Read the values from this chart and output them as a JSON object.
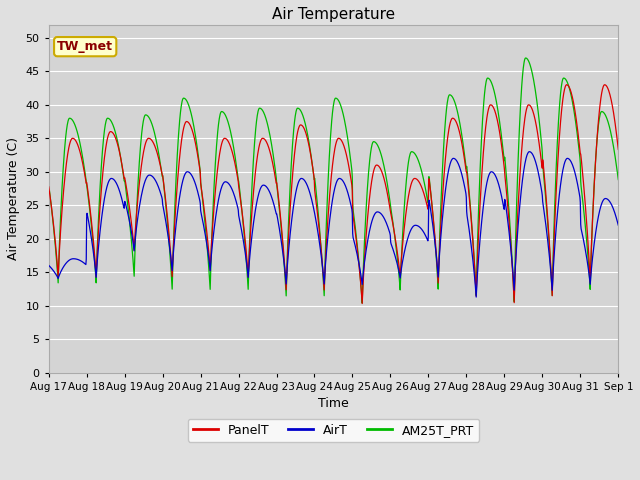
{
  "title": "Air Temperature",
  "xlabel": "Time",
  "ylabel": "Air Temperature (C)",
  "ylim": [
    0,
    52
  ],
  "yticks": [
    0,
    5,
    10,
    15,
    20,
    25,
    30,
    35,
    40,
    45,
    50
  ],
  "x_labels": [
    "Aug 17",
    "Aug 18",
    "Aug 19",
    "Aug 20",
    "Aug 21",
    "Aug 22",
    "Aug 23",
    "Aug 24",
    "Aug 25",
    "Aug 26",
    "Aug 27",
    "Aug 28",
    "Aug 29",
    "Aug 30",
    "Aug 31",
    "Sep 1"
  ],
  "annotation_text": "TW_met",
  "annotation_color": "#8B0000",
  "annotation_bg": "#FFFFCC",
  "annotation_edge": "#CCAA00",
  "panel_color": "#DD0000",
  "airt_color": "#0000CC",
  "am25t_color": "#00BB00",
  "fig_bg_color": "#E0E0E0",
  "plot_bg_color": "#D4D4D4",
  "grid_color": "#FFFFFF",
  "n_days": 15,
  "points_per_day": 96,
  "daily_maxes_panel": [
    35,
    36,
    35,
    37.5,
    35,
    35,
    37,
    35,
    31,
    29,
    38,
    40,
    40,
    43,
    43
  ],
  "daily_mins_panel": [
    14,
    14,
    18,
    14,
    15,
    14,
    12,
    12,
    10,
    14,
    13,
    11,
    10,
    11,
    13
  ],
  "daily_maxes_airt": [
    17,
    29,
    29.5,
    30,
    28.5,
    28,
    29,
    29,
    24,
    22,
    32,
    30,
    33,
    32,
    26
  ],
  "daily_mins_airt": [
    14,
    14,
    18,
    15,
    15,
    14,
    13,
    13,
    13,
    14,
    14,
    11,
    12,
    12,
    13
  ],
  "daily_maxes_am25t": [
    38,
    38,
    38.5,
    41,
    39,
    39.5,
    39.5,
    41,
    34.5,
    33,
    41.5,
    44,
    47,
    44,
    39
  ],
  "daily_mins_am25t": [
    13,
    13,
    14,
    12,
    12,
    12,
    11,
    11,
    10,
    12,
    12,
    11,
    10,
    11,
    12
  ],
  "legend_labels": [
    "PanelT",
    "AirT",
    "AM25T_PRT"
  ],
  "title_fontsize": 11,
  "axis_label_fontsize": 9,
  "tick_fontsize": 8,
  "legend_fontsize": 9
}
